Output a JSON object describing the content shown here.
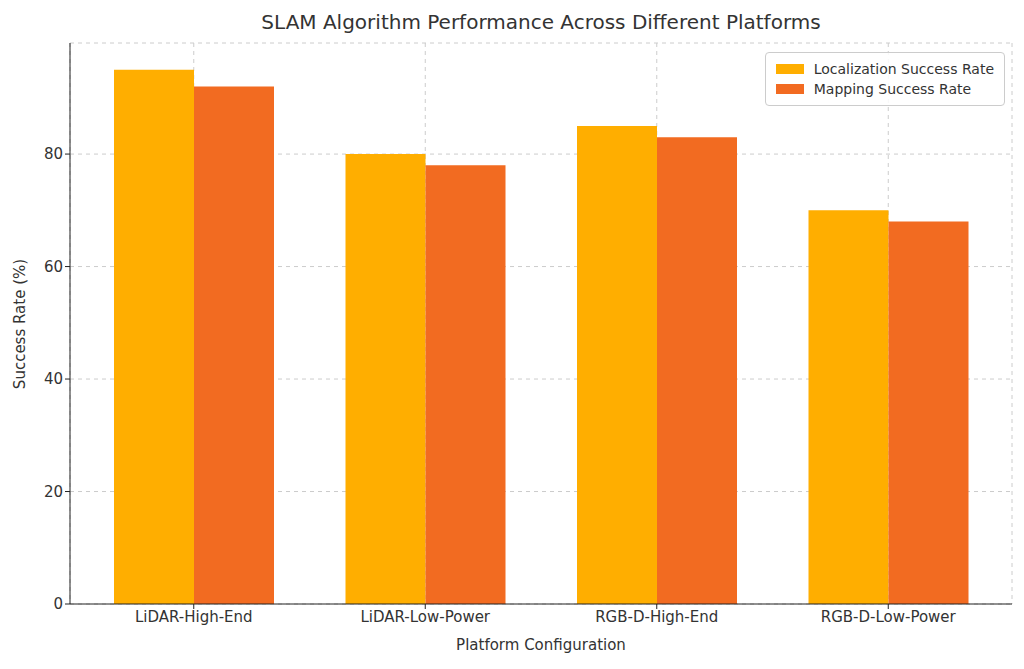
{
  "chart_data": {
    "type": "bar",
    "title": "SLAM Algorithm Performance Across Different Platforms",
    "x_label": "Platform Configuration",
    "y_label": "Success Rate (%)",
    "categories": [
      "LiDAR-High-End",
      "LiDAR-Low-Power",
      "RGB-D-High-End",
      "RGB-D-Low-Power"
    ],
    "series": [
      {
        "name": "Localization Success Rate",
        "color": "#ffae00",
        "values": [
          95,
          80,
          85,
          70
        ]
      },
      {
        "name": "Mapping Success Rate",
        "color": "#f26b21",
        "values": [
          92,
          78,
          83,
          68
        ]
      }
    ],
    "ylim": [
      0,
      99.75
    ],
    "yticks": [
      0,
      20,
      40,
      60,
      80
    ],
    "grid": true,
    "legend": "upper right"
  }
}
